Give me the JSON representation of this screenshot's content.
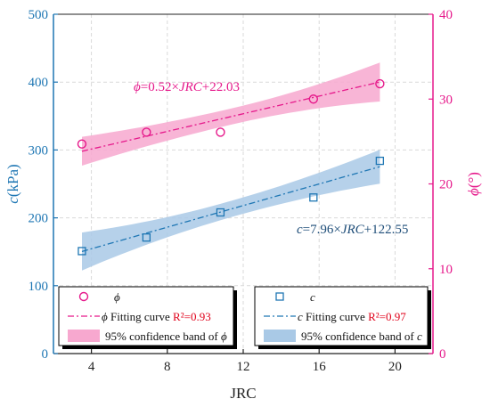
{
  "chart_data": {
    "type": "scatter",
    "xlabel": "JRC",
    "ylabel_left": "c(kPa)",
    "ylabel_right": "ϕ(°)",
    "xlim": [
      2,
      22
    ],
    "ylim_left": [
      0,
      500
    ],
    "ylim_right": [
      0,
      40
    ],
    "x_ticks": [
      "4",
      "8",
      "12",
      "16",
      "20"
    ],
    "y_left_ticks": [
      "0",
      "100",
      "200",
      "300",
      "400",
      "500"
    ],
    "y_right_ticks": [
      "0",
      "10",
      "20",
      "30",
      "40"
    ],
    "grid": true,
    "colors": {
      "phi": "#e6198b",
      "c": "#1f77b4",
      "phi_band": "#f7a8cf",
      "c_band": "#a9c9e6",
      "equation": "#1f4e79"
    },
    "series": [
      {
        "name": "ϕ",
        "axis": "right",
        "marker": "circle",
        "x": [
          3.5,
          6.9,
          10.8,
          15.7,
          19.2
        ],
        "y": [
          24.7,
          26.1,
          26.1,
          30.0,
          31.8
        ]
      },
      {
        "name": "c",
        "axis": "left",
        "marker": "square",
        "x": [
          3.5,
          6.9,
          10.8,
          15.7,
          19.2
        ],
        "y": [
          151,
          171,
          208,
          230,
          284
        ]
      }
    ],
    "fits": [
      {
        "series": "ϕ",
        "axis": "right",
        "slope": 0.52,
        "intercept": 22.03,
        "x_range": [
          3.5,
          19.2
        ],
        "band_half_width": {
          "start": 1.7,
          "mid": 0.95,
          "end": 2.3
        },
        "equation_label": "ϕ=0.52×JRC+22.03"
      },
      {
        "series": "c",
        "axis": "left",
        "slope": 7.96,
        "intercept": 122.55,
        "x_range": [
          3.5,
          19.2
        ],
        "band_half_width": {
          "start": 28,
          "mid": 12,
          "end": 25
        },
        "equation_label": "c=7.96×JRC+122.55"
      }
    ],
    "legends": [
      {
        "placement": "bottom-left",
        "entries": [
          "ϕ",
          "ϕ Fitting curve R²=0.93",
          "95% confidence band of ϕ"
        ]
      },
      {
        "placement": "bottom-right",
        "entries": [
          "c",
          "c Fitting curve R²=0.97",
          "95% confidence band of c"
        ]
      }
    ]
  }
}
